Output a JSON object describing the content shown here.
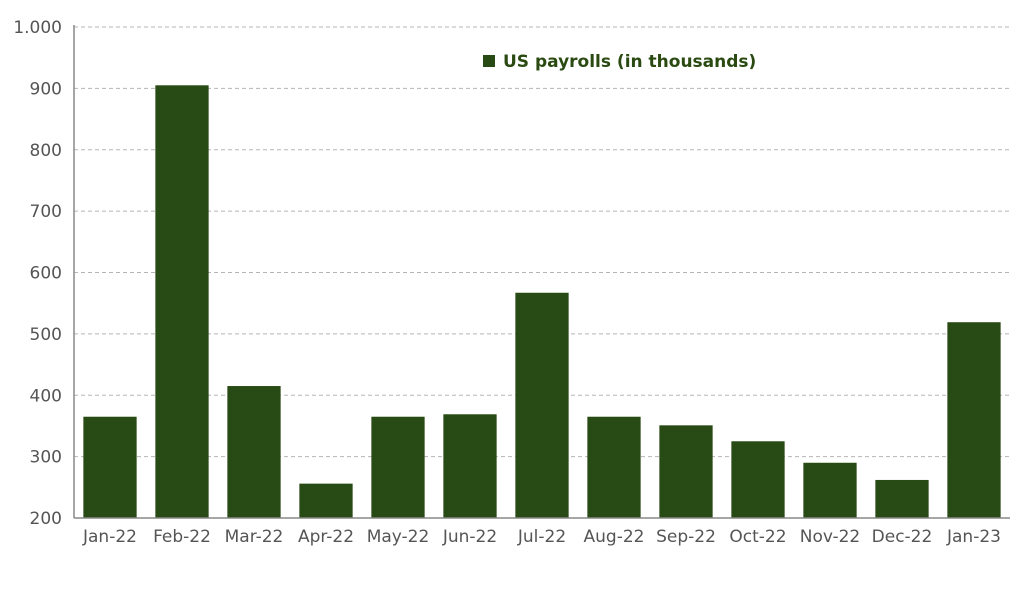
{
  "chart_data": {
    "type": "bar",
    "categories": [
      "Jan-22",
      "Feb-22",
      "Mar-22",
      "Apr-22",
      "May-22",
      "Jun-22",
      "Jul-22",
      "Aug-22",
      "Sep-22",
      "Oct-22",
      "Nov-22",
      "Dec-22",
      "Jan-23"
    ],
    "series": [
      {
        "name": "US payrolls (in thousands)",
        "color": "#284a14",
        "values": [
          365,
          905,
          415,
          256,
          365,
          369,
          567,
          365,
          351,
          325,
          290,
          262,
          519
        ]
      }
    ],
    "y_ticks": [
      "200",
      "300",
      "400",
      "500",
      "600",
      "700",
      "800",
      "900",
      "1.000"
    ],
    "ylim": [
      200,
      1000
    ],
    "grid": true,
    "legend": "top-center"
  }
}
